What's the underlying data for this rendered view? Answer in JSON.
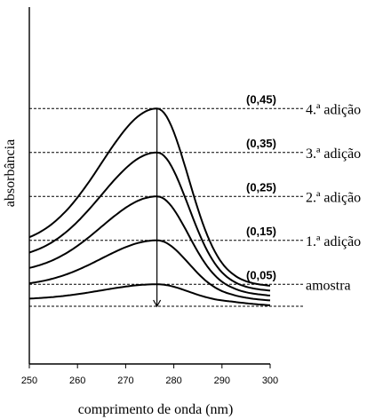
{
  "chart_data": {
    "type": "line",
    "xlabel": "comprimento de onda (nm)",
    "ylabel": "absorbância",
    "xlim": [
      250,
      300
    ],
    "xticks": [
      250,
      260,
      270,
      280,
      290,
      300
    ],
    "ylim": [
      0,
      0.65
    ],
    "peak_wavelength": 276.5,
    "series": [
      {
        "name": "amostra",
        "value_label": "(0,05)",
        "peak": 0.05
      },
      {
        "name": "1.ª adição",
        "value_label": "(0,15)",
        "peak": 0.15
      },
      {
        "name": "2.ª adição",
        "value_label": "(0,25)",
        "peak": 0.25
      },
      {
        "name": "3.ª adição",
        "value_label": "(0,35)",
        "peak": 0.35
      },
      {
        "name": "4.ª adição",
        "value_label": "(0,45)",
        "peak": 0.45
      }
    ]
  }
}
